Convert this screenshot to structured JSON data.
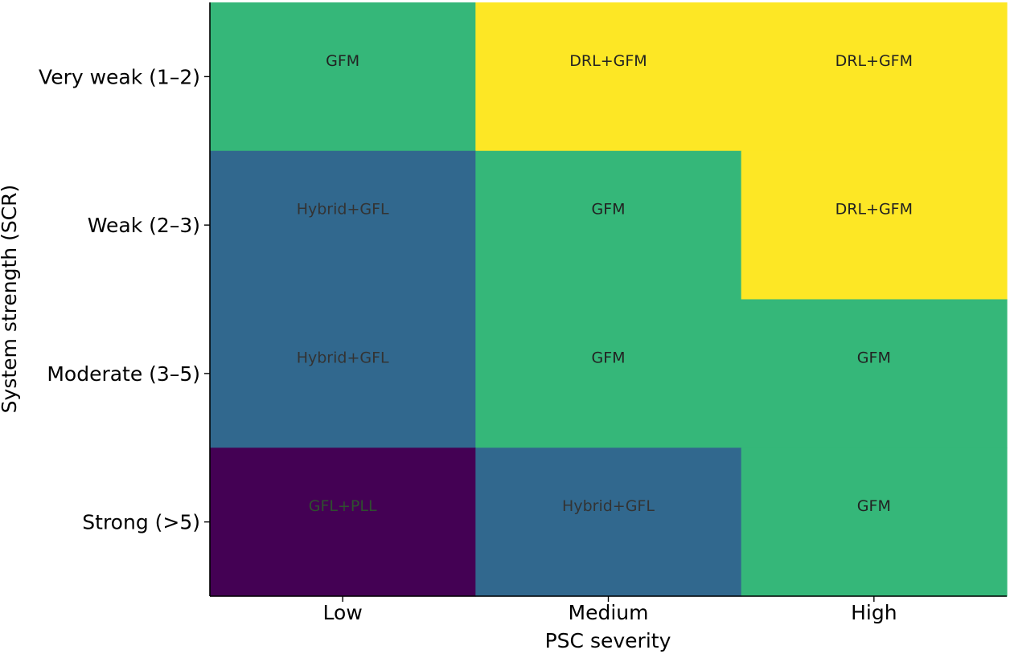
{
  "chart_data": {
    "type": "heatmap",
    "title": "",
    "xlabel": "PSC severity",
    "ylabel": "System strength (SCR)",
    "x_categories": [
      "Low",
      "Medium",
      "High"
    ],
    "y_categories": [
      "Very weak (1–2)",
      "Weak (2–3)",
      "Moderate (3–5)",
      "Strong (>5)"
    ],
    "cells": [
      [
        "GFM",
        "DRL+GFM",
        "DRL+GFM"
      ],
      [
        "Hybrid+GFL",
        "GFM",
        "DRL+GFM"
      ],
      [
        "Hybrid+GFL",
        "GFM",
        "GFM"
      ],
      [
        "GFL+PLL",
        "Hybrid+GFL",
        "GFM"
      ]
    ],
    "category_colors": {
      "GFL+PLL": "#440154",
      "Hybrid+GFL": "#31688e",
      "GFM": "#35b779",
      "DRL+GFM": "#fde725"
    },
    "label_colors": {
      "GFL+PLL": "#2f4f2f",
      "Hybrid+GFL": "#333333",
      "GFM": "#222222",
      "DRL+GFM": "#222222"
    },
    "grid": false,
    "colorbar": false
  }
}
